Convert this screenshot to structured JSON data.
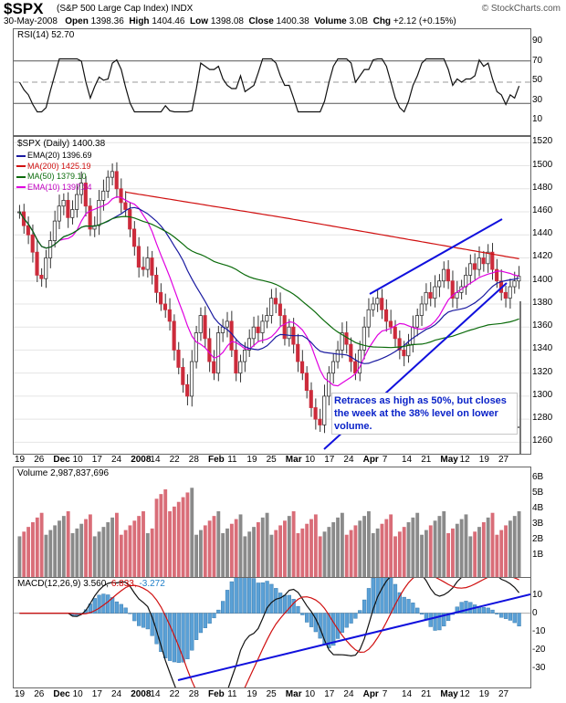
{
  "header": {
    "symbol": "$SPX",
    "name": "(S&P 500 Large Cap Index) INDX",
    "date": "30-May-2008",
    "open_label": "Open",
    "open": "1398.36",
    "high_label": "High",
    "high": "1404.46",
    "low_label": "Low",
    "low": "1398.08",
    "close_label": "Close",
    "close": "1400.38",
    "volume_label": "Volume",
    "volume": "3.0B",
    "chg_label": "Chg",
    "chg": "+2.12 (+0.15%)",
    "logo": "© StockCharts.com"
  },
  "rsi": {
    "label": "RSI(14) 52.70",
    "ticks": [
      "90",
      "70",
      "50",
      "30",
      "10"
    ]
  },
  "price": {
    "label": "$SPX (Daily) 1400.38",
    "ticks": [
      "1520",
      "1500",
      "1480",
      "1460",
      "1440",
      "1420",
      "1400",
      "1380",
      "1360",
      "1340",
      "1320",
      "1300",
      "1280",
      "1260"
    ]
  },
  "legend": [
    {
      "text": "EMA(20) 1396.69",
      "color": "#1a1aa0"
    },
    {
      "text": "MA(200) 1425.19",
      "color": "#d01010"
    },
    {
      "text": "MA(50) 1379.10",
      "color": "#0b6b0b"
    },
    {
      "text": "EMA(10) 1397.34",
      "color": "#e000e0"
    }
  ],
  "annotation": "Retraces as high as 50%, but closes the week at the 38% level on lower volume.",
  "xaxis": [
    "19",
    "26",
    "Dec",
    "10",
    "17",
    "24",
    "2008",
    "14",
    "22",
    "28",
    "Feb",
    "11",
    "19",
    "25",
    "Mar",
    "10",
    "17",
    "24",
    "Apr",
    "7",
    "14",
    "21",
    "May",
    "12",
    "19",
    "27"
  ],
  "volume": {
    "label": "Volume 2,987,837,696",
    "ticks": [
      "6B",
      "5B",
      "4B",
      "3B",
      "2B",
      "1B"
    ]
  },
  "macd": {
    "label": "MACD(12,26,9)",
    "v1": "3.560,",
    "v2": "6.833,",
    "v3": "-3.272",
    "ticks": [
      "10",
      "0",
      "-10",
      "-20",
      "-30"
    ]
  },
  "colors": {
    "up": "#888888",
    "down": "#cc2b3b",
    "trend": "#1010dd",
    "vol_up": "#8a8a8a",
    "vol_down": "#d96d78"
  },
  "chart_data": {
    "type": "candlestick",
    "title": "$SPX (S&P 500 Large Cap Index) INDX",
    "ylim": [
      1250,
      1525
    ],
    "close_series": [
      1460,
      1448,
      1440,
      1425,
      1405,
      1402,
      1420,
      1435,
      1452,
      1465,
      1470,
      1455,
      1462,
      1475,
      1485,
      1465,
      1445,
      1448,
      1470,
      1478,
      1490,
      1495,
      1480,
      1468,
      1462,
      1445,
      1430,
      1412,
      1410,
      1420,
      1405,
      1390,
      1380,
      1375,
      1365,
      1340,
      1325,
      1310,
      1300,
      1330,
      1355,
      1370,
      1350,
      1330,
      1320,
      1355,
      1360,
      1365,
      1340,
      1320,
      1330,
      1340,
      1350,
      1360,
      1355,
      1365,
      1370,
      1385,
      1380,
      1370,
      1350,
      1360,
      1345,
      1330,
      1320,
      1305,
      1290,
      1280,
      1275,
      1300,
      1320,
      1330,
      1340,
      1355,
      1345,
      1330,
      1320,
      1340,
      1360,
      1375,
      1380,
      1385,
      1375,
      1365,
      1360,
      1350,
      1340,
      1335,
      1345,
      1360,
      1370,
      1380,
      1390,
      1385,
      1395,
      1400,
      1410,
      1400,
      1385,
      1390,
      1395,
      1405,
      1415,
      1410,
      1420,
      1415,
      1425,
      1410,
      1400,
      1390,
      1385,
      1395,
      1400,
      1404
    ]
  }
}
